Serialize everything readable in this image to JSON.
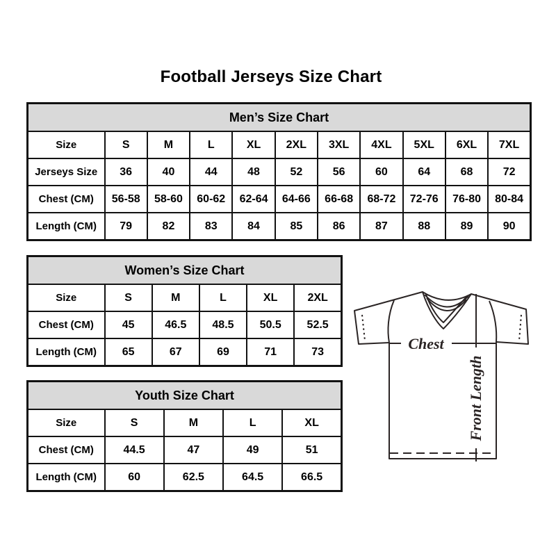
{
  "page": {
    "title": "Football Jerseys Size Chart"
  },
  "tables": [
    {
      "id": "mens",
      "title": "Men’s Size Chart",
      "rows": [
        [
          "Size",
          "S",
          "M",
          "L",
          "XL",
          "2XL",
          "3XL",
          "4XL",
          "5XL",
          "6XL",
          "7XL"
        ],
        [
          "Jerseys Size",
          "36",
          "40",
          "44",
          "48",
          "52",
          "56",
          "60",
          "64",
          "68",
          "72"
        ],
        [
          "Chest (CM)",
          "56-58",
          "58-60",
          "60-62",
          "62-64",
          "64-66",
          "66-68",
          "68-72",
          "72-76",
          "76-80",
          "80-84"
        ],
        [
          "Length (CM)",
          "79",
          "82",
          "83",
          "84",
          "85",
          "86",
          "87",
          "88",
          "89",
          "90"
        ]
      ]
    },
    {
      "id": "womens",
      "title": "Women’s Size Chart",
      "rows": [
        [
          "Size",
          "S",
          "M",
          "L",
          "XL",
          "2XL"
        ],
        [
          "Chest (CM)",
          "45",
          "46.5",
          "48.5",
          "50.5",
          "52.5"
        ],
        [
          "Length (CM)",
          "65",
          "67",
          "69",
          "71",
          "73"
        ]
      ]
    },
    {
      "id": "youth",
      "title": "Youth Size Chart",
      "rows": [
        [
          "Size",
          "S",
          "M",
          "L",
          "XL"
        ],
        [
          "Chest (CM)",
          "44.5",
          "47",
          "49",
          "51"
        ],
        [
          "Length (CM)",
          "60",
          "62.5",
          "64.5",
          "66.5"
        ]
      ]
    }
  ],
  "diagram": {
    "chest_label": "Chest",
    "front_length_label": "Front Length"
  },
  "colors": {
    "header_bg": "#d9d9d9",
    "table_border": "#121212",
    "drawing_line": "#2a2424",
    "text": "#000000"
  }
}
